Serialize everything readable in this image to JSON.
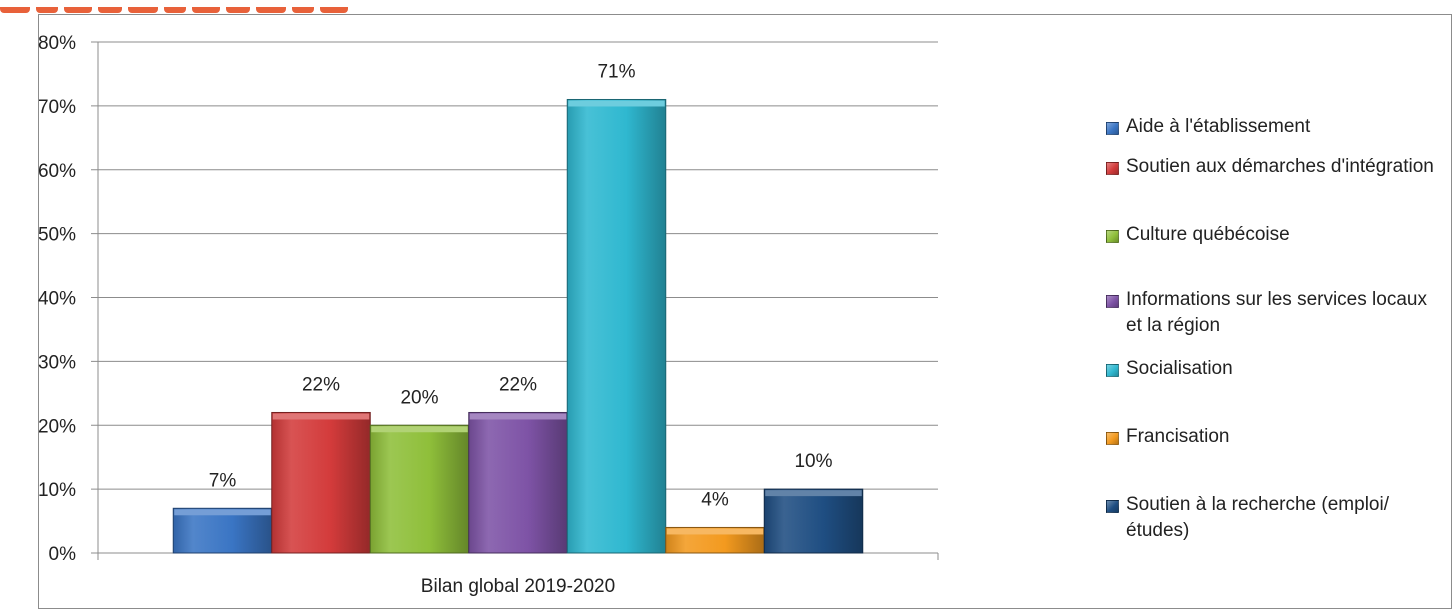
{
  "chart_data": {
    "type": "bar",
    "categories": [
      "Bilan global 2019-2020"
    ],
    "series": [
      {
        "name": "Aide à l'établissement",
        "values": [
          7
        ],
        "label": "7%",
        "color": "#3a75c4"
      },
      {
        "name": "Soutien aux démarches d'intégration",
        "values": [
          22
        ],
        "label": "22%",
        "color": "#d33b3b"
      },
      {
        "name": "Culture québécoise",
        "values": [
          20
        ],
        "label": "20%",
        "color": "#8fbf3a"
      },
      {
        "name": "Informations sur les services locaux et la région",
        "values": [
          22
        ],
        "label": "22%",
        "color": "#7e53a6"
      },
      {
        "name": "Socialisation",
        "values": [
          71
        ],
        "label": "71%",
        "color": "#2fb8d0"
      },
      {
        "name": "Francisation",
        "values": [
          4
        ],
        "label": "4%",
        "color": "#f39a1f"
      },
      {
        "name": "Soutien à la recherche (emploi/études)",
        "values": [
          10
        ],
        "label": "10%",
        "color": "#1f4e82"
      }
    ],
    "ylim": [
      0,
      80
    ],
    "y_ticks": [
      "0%",
      "10%",
      "20%",
      "30%",
      "40%",
      "50%",
      "60%",
      "70%",
      "80%"
    ],
    "grid": true,
    "legend_position": "right"
  }
}
